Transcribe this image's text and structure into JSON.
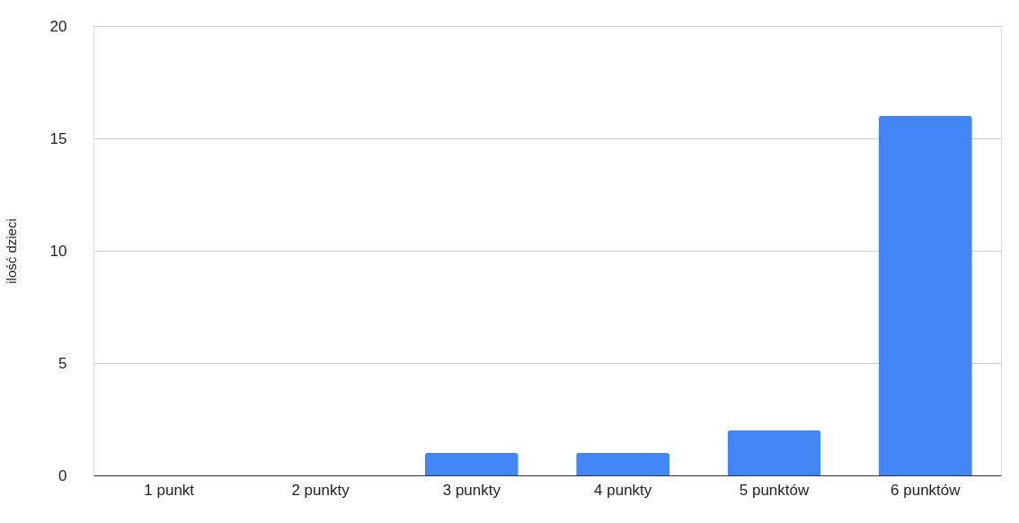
{
  "chart_data": {
    "type": "bar",
    "ylabel": "ilość dzieci",
    "categories": [
      "1 punkt",
      "2 punkty",
      "3 punkty",
      "4 punkty",
      "5 punktów",
      "6 punktów"
    ],
    "values": [
      0,
      0,
      1,
      1,
      2,
      16
    ],
    "color": "#4285f4",
    "ylim": [
      0,
      20
    ],
    "yticks": [
      0,
      5,
      10,
      15,
      20
    ],
    "grid": "y"
  }
}
